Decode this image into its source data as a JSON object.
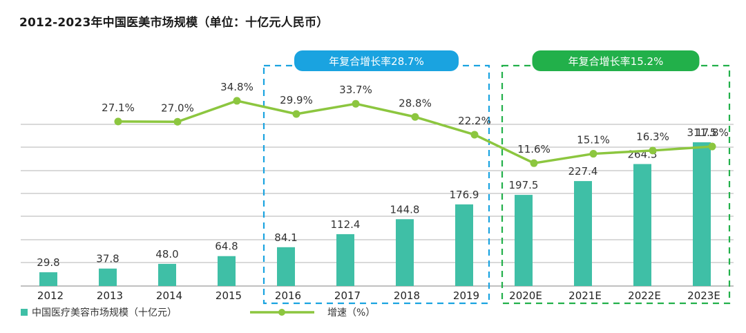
{
  "title": "2012-2023年中国医美市场规模（单位：十亿元人民币）",
  "colors": {
    "bar": "#3fbfa6",
    "line": "#8cc63f",
    "gridline": "#9a9a9a",
    "blue_box": "#1aa3e0",
    "green_box": "#22b04a"
  },
  "chart_data": {
    "type": "bar+line",
    "title": "2012-2023年中国医美市场规模（单位：十亿元人民币）",
    "categories": [
      "2012",
      "2013",
      "2014",
      "2015",
      "2016",
      "2017",
      "2018",
      "2019",
      "2020E",
      "2021E",
      "2022E",
      "2023E"
    ],
    "series": [
      {
        "name": "中国医疗美容市场规模（十亿元）",
        "type": "bar",
        "values": [
          29.8,
          37.8,
          48.0,
          64.8,
          84.1,
          112.4,
          144.8,
          176.9,
          197.5,
          227.4,
          264.3,
          311.5
        ],
        "labels": [
          "29.8",
          "37.8",
          "48.0",
          "64.8",
          "84.1",
          "112.4",
          "144.8",
          "176.9",
          "197.5",
          "227.4",
          "264.3",
          "311.5"
        ]
      },
      {
        "name": "增速（%）",
        "type": "line",
        "values": [
          null,
          27.1,
          27.0,
          34.8,
          29.9,
          33.7,
          28.8,
          22.2,
          11.6,
          15.1,
          16.3,
          17.8
        ],
        "labels": [
          "",
          "27.1%",
          "27.0%",
          "34.8%",
          "29.9%",
          "33.7%",
          "28.8%",
          "22.2%",
          "11.6%",
          "15.1%",
          "16.3%",
          "17.8%"
        ]
      }
    ],
    "groups": [
      {
        "label": "年复合增长率28.7%",
        "from": "2016",
        "to": "2019",
        "style": "blue dashed box"
      },
      {
        "label": "年复合增长率15.2%",
        "from": "2020E",
        "to": "2023E",
        "style": "green dashed box"
      }
    ],
    "bar_ylim": [
      0,
      350
    ],
    "line_ylim": [
      0,
      40
    ],
    "grid": true,
    "legend": {
      "position": "bottom-left",
      "bar_label": "中国医疗美容市场规模（十亿元）",
      "line_label": "增速（%）"
    }
  }
}
